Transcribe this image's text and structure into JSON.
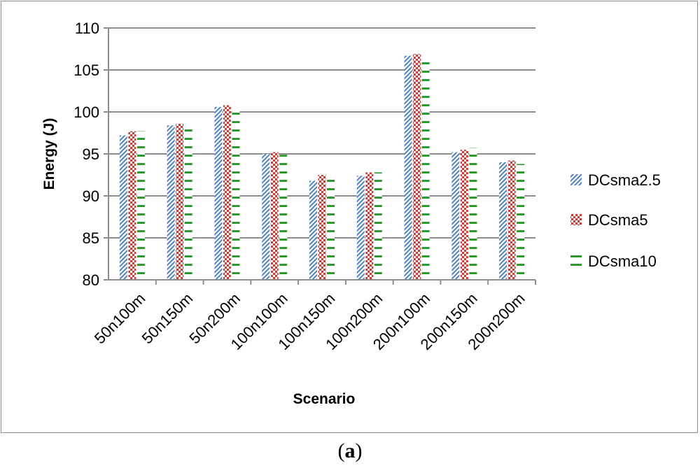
{
  "chart_data": {
    "type": "bar",
    "title": "",
    "xlabel": "Scenario",
    "ylabel": "Energy (J)",
    "ylim": [
      80,
      110
    ],
    "yticks": [
      80,
      85,
      90,
      95,
      100,
      105,
      110
    ],
    "grid": true,
    "legend_position": "right",
    "categories": [
      "50n100m",
      "50n150m",
      "50n200m",
      "100n100m",
      "100n150m",
      "100n200m",
      "200n100m",
      "200n150m",
      "200n200m"
    ],
    "series": [
      {
        "name": "DCsma2.5",
        "color": "#4a7fd6",
        "pattern": "diagonal",
        "values": [
          97.2,
          98.4,
          100.6,
          95.0,
          91.8,
          92.4,
          106.7,
          95.2,
          94.0
        ]
      },
      {
        "name": "DCsma5",
        "color": "#e0342c",
        "pattern": "checker",
        "values": [
          97.7,
          98.6,
          100.8,
          95.2,
          92.5,
          92.8,
          106.9,
          95.5,
          94.2
        ]
      },
      {
        "name": "DCsma10",
        "color": "#2c9a2c",
        "pattern": "dash",
        "values": [
          97.7,
          98.6,
          100.6,
          94.9,
          92.2,
          92.8,
          106.5,
          95.7,
          93.8
        ]
      }
    ]
  },
  "caption": {
    "open": "(",
    "letter": "a",
    "close": ")"
  }
}
